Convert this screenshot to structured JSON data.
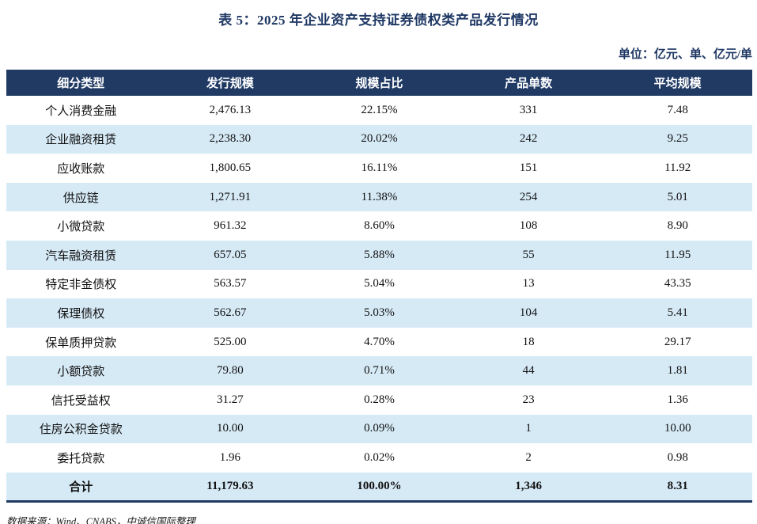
{
  "title": "表 5：2025 年企业资产支持证券债权类产品发行情况",
  "unit_label": "单位：亿元、单、亿元/单",
  "source_note": "数据来源：Wind、CNABS，中诚信国际整理",
  "colors": {
    "header_bg": "#203A64",
    "accent_text": "#1F3864",
    "row_alt_bg": "#D6EAF6",
    "body_text": "#111111"
  },
  "chart_data": {
    "type": "table",
    "columns": [
      "细分类型",
      "发行规模",
      "规模占比",
      "产品单数",
      "平均规模"
    ],
    "rows": [
      [
        "个人消费金融",
        "2,476.13",
        "22.15%",
        "331",
        "7.48"
      ],
      [
        "企业融资租赁",
        "2,238.30",
        "20.02%",
        "242",
        "9.25"
      ],
      [
        "应收账款",
        "1,800.65",
        "16.11%",
        "151",
        "11.92"
      ],
      [
        "供应链",
        "1,271.91",
        "11.38%",
        "254",
        "5.01"
      ],
      [
        "小微贷款",
        "961.32",
        "8.60%",
        "108",
        "8.90"
      ],
      [
        "汽车融资租赁",
        "657.05",
        "5.88%",
        "55",
        "11.95"
      ],
      [
        "特定非金债权",
        "563.57",
        "5.04%",
        "13",
        "43.35"
      ],
      [
        "保理债权",
        "562.67",
        "5.03%",
        "104",
        "5.41"
      ],
      [
        "保单质押贷款",
        "525.00",
        "4.70%",
        "18",
        "29.17"
      ],
      [
        "小额贷款",
        "79.80",
        "0.71%",
        "44",
        "1.81"
      ],
      [
        "信托受益权",
        "31.27",
        "0.28%",
        "23",
        "1.36"
      ],
      [
        "住房公积金贷款",
        "10.00",
        "0.09%",
        "1",
        "10.00"
      ],
      [
        "委托贷款",
        "1.96",
        "0.02%",
        "2",
        "0.98"
      ]
    ],
    "total_row": [
      "合计",
      "11,179.63",
      "100.00%",
      "1,346",
      "8.31"
    ]
  }
}
